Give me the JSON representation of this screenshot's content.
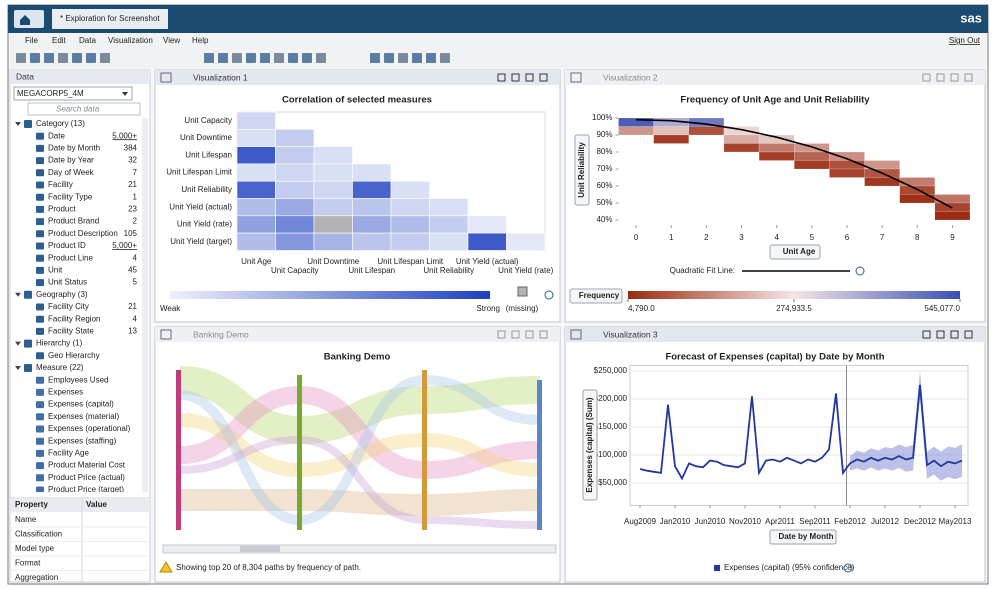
{
  "app": {
    "tab": "* Exploration for Screenshot",
    "logo": "sas",
    "menu": [
      "File",
      "Edit",
      "Data",
      "Visualization",
      "View",
      "Help"
    ],
    "sign_out": "Sign Out"
  },
  "data_pane": {
    "title": "Data",
    "source": "MEGACORP5_4M",
    "search_placeholder": "Search data",
    "groups": [
      {
        "label": "Category (13)",
        "items": [
          {
            "name": "Date",
            "count": "5,000+"
          },
          {
            "name": "Date by Month",
            "count": "384"
          },
          {
            "name": "Date by Year",
            "count": "32"
          },
          {
            "name": "Day of Week",
            "count": "7"
          },
          {
            "name": "Facility",
            "count": "21"
          },
          {
            "name": "Facility Type",
            "count": "1"
          },
          {
            "name": "Product",
            "count": "23"
          },
          {
            "name": "Product Brand",
            "count": "2"
          },
          {
            "name": "Product Description",
            "count": "105"
          },
          {
            "name": "Product ID",
            "count": "5,000+"
          },
          {
            "name": "Product Line",
            "count": "4"
          },
          {
            "name": "Unit",
            "count": "45"
          },
          {
            "name": "Unit Status",
            "count": "5"
          }
        ]
      },
      {
        "label": "Geography (3)",
        "items": [
          {
            "name": "Facility City",
            "count": "21"
          },
          {
            "name": "Facility Region",
            "count": "4"
          },
          {
            "name": "Facility State",
            "count": "13"
          }
        ]
      },
      {
        "label": "Hierarchy (1)",
        "items": [
          {
            "name": "Geo Hierarchy"
          }
        ]
      },
      {
        "label": "Measure (22)",
        "items": [
          {
            "name": "Employees Used"
          },
          {
            "name": "Expenses"
          },
          {
            "name": "Expenses (capital)"
          },
          {
            "name": "Expenses (material)"
          },
          {
            "name": "Expenses (operational)"
          },
          {
            "name": "Expenses (staffing)"
          },
          {
            "name": "Facility Age"
          },
          {
            "name": "Product Material Cost"
          },
          {
            "name": "Product Price (actual)"
          },
          {
            "name": "Product Price (target)"
          }
        ]
      }
    ]
  },
  "properties": {
    "headers": [
      "Property",
      "Value"
    ],
    "rows": [
      "Name",
      "Classification",
      "Model type",
      "Format",
      "Aggregation"
    ]
  },
  "chart_data": [
    {
      "type": "heatmap",
      "panel_title": "Visualization 1",
      "title": "Correlation of selected measures",
      "rows": [
        "Unit Capacity",
        "Unit Downtime",
        "Unit Lifespan",
        "Unit Lifespan Limit",
        "Unit Reliability",
        "Unit Yield (actual)",
        "Unit Yield (rate)",
        "Unit Yield (target)"
      ],
      "columns": [
        "Unit Age",
        "Unit Capacity",
        "Unit Downtime",
        "Unit Lifespan",
        "Unit Lifespan Limit",
        "Unit Reliability",
        "Unit Yield (actual)",
        "Unit Yield (rate)"
      ],
      "values": [
        [
          0.15
        ],
        [
          0.1,
          0.2
        ],
        [
          0.85,
          0.2,
          0.1
        ],
        [
          0.1,
          0.15,
          0.1,
          0.1
        ],
        [
          0.8,
          0.2,
          0.15,
          0.8,
          0.1
        ],
        [
          0.3,
          0.4,
          0.2,
          0.25,
          0.15,
          0.1
        ],
        [
          0.45,
          0.6,
          null,
          0.4,
          0.3,
          0.2,
          0.05
        ],
        [
          0.3,
          0.5,
          0.35,
          0.25,
          0.2,
          0.1,
          0.85,
          0.05
        ]
      ],
      "colors": [
        "#eef1fb",
        "#1e3fbf"
      ],
      "missing_color": "#b3b3b3",
      "legend": {
        "low": "Weak",
        "high": "Strong",
        "missing": "(missing)"
      }
    },
    {
      "type": "heatmap-fit",
      "panel_title": "Visualization 2",
      "title": "Frequency of Unit Age and Unit Reliability",
      "x_label": "Unit Age",
      "y_label": "Unit Reliability",
      "x": [
        0,
        0,
        1,
        1,
        1,
        2,
        2,
        3,
        3,
        3,
        4,
        4,
        4,
        5,
        5,
        5,
        6,
        6,
        6,
        7,
        7,
        7,
        8,
        8,
        8,
        9,
        9,
        9
      ],
      "y": [
        97.5,
        92.5,
        97.5,
        92.5,
        87.5,
        97.5,
        92.5,
        92.5,
        87.5,
        82.5,
        87.5,
        82.5,
        77.5,
        82.5,
        77.5,
        72.5,
        77.5,
        72.5,
        67.5,
        72.5,
        67.5,
        62.5,
        62.5,
        57.5,
        52.5,
        52.5,
        47.5,
        42.5
      ],
      "values": [
        520000,
        160000,
        380000,
        220000,
        30000,
        470000,
        60000,
        250000,
        190000,
        40000,
        230000,
        120000,
        35000,
        160000,
        90000,
        30000,
        150000,
        60000,
        40000,
        160000,
        70000,
        25000,
        120000,
        50000,
        15000,
        110000,
        40000,
        8000
      ],
      "xlim": [
        -0.5,
        9.5
      ],
      "xticks": [
        0,
        1,
        2,
        3,
        4,
        5,
        6,
        7,
        8,
        9
      ],
      "ylim": [
        37,
        102
      ],
      "yticks": [
        {
          "value": 40,
          "label": "40%"
        },
        {
          "value": 50,
          "label": "50%"
        },
        {
          "value": 60,
          "label": "60%"
        },
        {
          "value": 70,
          "label": "70%"
        },
        {
          "value": 80,
          "label": "80%"
        },
        {
          "value": 90,
          "label": "90%"
        },
        {
          "value": 100,
          "label": "100%"
        }
      ],
      "fit": {
        "label": "Quadratic Fit Line:",
        "x": [
          0,
          1,
          2,
          3,
          4,
          5,
          6,
          7,
          8,
          9
        ],
        "y": [
          99,
          98.4,
          96.4,
          93.2,
          88.7,
          83,
          76,
          67.6,
          58,
          47
        ],
        "color": "#000000"
      },
      "colorbar": {
        "label": "Frequency",
        "colors": [
          "#9b2a10",
          "#f4e6e6",
          "#3a4fb4"
        ],
        "ticks": [
          {
            "value": 4790,
            "label": "4,790.0"
          },
          {
            "value": 274933.5,
            "label": "274,933.5"
          },
          {
            "value": 545077,
            "label": "545,077.0"
          }
        ]
      }
    },
    {
      "type": "path-analysis",
      "panel_title": "Banking Demo",
      "title": "Banking Demo",
      "footer": "Showing top 20 of 8,304 paths by frequency of path."
    },
    {
      "type": "line-forecast",
      "panel_title": "Visualization 3",
      "title": "Forecast of Expenses (capital) by Date by Month",
      "x_label": "Date by Month",
      "y_label": "Expenses (capital) (Sum)",
      "categories": [
        "Aug2009",
        null,
        null,
        null,
        null,
        "Jan2010",
        null,
        null,
        null,
        null,
        "Jun2010",
        null,
        null,
        null,
        null,
        "Nov2010",
        null,
        null,
        null,
        null,
        "Apr2011",
        null,
        null,
        null,
        null,
        "Sep2011",
        null,
        null,
        null,
        null,
        "Feb2012",
        null,
        null,
        null,
        null,
        "Jul2012",
        null,
        null,
        null,
        null,
        "Dec2012",
        null,
        null,
        null,
        null,
        "May2013",
        null
      ],
      "values": [
        75000,
        72000,
        70000,
        68000,
        190000,
        80000,
        58000,
        85000,
        80000,
        78000,
        90000,
        88000,
        82000,
        80000,
        78000,
        85000,
        205000,
        68000,
        90000,
        92000,
        88000,
        95000,
        90000,
        85000,
        92000,
        88000,
        95000,
        110000,
        210000,
        68000,
        85000,
        92000,
        88000,
        95000,
        90000,
        95000,
        92000,
        98000,
        92000,
        95000,
        225000,
        82000,
        90000,
        80000,
        88000,
        85000,
        90000
      ],
      "lower": [
        null,
        null,
        null,
        null,
        null,
        null,
        null,
        null,
        null,
        null,
        null,
        null,
        null,
        null,
        null,
        null,
        null,
        null,
        null,
        null,
        null,
        null,
        null,
        null,
        null,
        null,
        null,
        null,
        null,
        null,
        72000,
        76000,
        72000,
        78000,
        72000,
        76000,
        72000,
        77000,
        70000,
        72000,
        200000,
        58000,
        65000,
        54000,
        61000,
        57000,
        61000
      ],
      "upper": [
        null,
        null,
        null,
        null,
        null,
        null,
        null,
        null,
        null,
        null,
        null,
        null,
        null,
        null,
        null,
        null,
        null,
        null,
        null,
        null,
        null,
        null,
        null,
        null,
        null,
        null,
        null,
        null,
        null,
        null,
        98000,
        108000,
        104000,
        112000,
        108000,
        114000,
        112000,
        119000,
        114000,
        118000,
        250000,
        106000,
        115000,
        106000,
        115000,
        113000,
        119000
      ],
      "color": "#22399b",
      "band_color": "#8d98d8",
      "ylim": [
        10000,
        260000
      ],
      "yticks": [
        {
          "value": 50000,
          "label": "$50,000"
        },
        {
          "value": 100000,
          "label": "$100,000"
        },
        {
          "value": 150000,
          "label": "$150,000"
        },
        {
          "value": 200000,
          "label": "$200,000"
        },
        {
          "value": 250000,
          "label": "$250,000"
        }
      ],
      "grid": true,
      "legend": "Expenses (capital) (95% confidence)"
    }
  ]
}
